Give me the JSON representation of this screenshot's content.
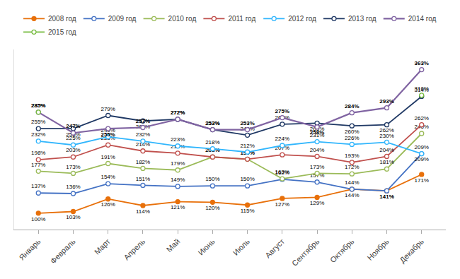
{
  "chart_data": {
    "type": "line",
    "categories": [
      "Январь",
      "Февраль",
      "Март",
      "Апрель",
      "Май",
      "Июнь",
      "Июль",
      "Август",
      "Сентябрь",
      "Октябрь",
      "Ноябрь",
      "Декабрь"
    ],
    "series": [
      {
        "name": "2008 год",
        "color": "#E8700A",
        "marker": "circle",
        "values": [
          100,
          103,
          126,
          114,
          121,
          120,
          115,
          127,
          129,
          144,
          141,
          171
        ],
        "value_labels": [
          "100%",
          "103%",
          "126%",
          "114%",
          "121%",
          "120%",
          "115%",
          "127%",
          "129%",
          "144%",
          "141%",
          "171%"
        ]
      },
      {
        "name": "2009 год",
        "color": "#4472C4",
        "marker": "circle-open",
        "values": [
          137,
          136,
          154,
          151,
          149,
          150,
          150,
          162,
          157,
          144,
          141,
          209
        ],
        "value_labels": [
          "137%",
          "136%",
          "154%",
          "151%",
          "149%",
          "150%",
          "150%",
          "162%",
          "157%",
          "144%",
          "141%",
          "209%"
        ]
      },
      {
        "name": "2010 год",
        "color": "#9BBB59",
        "marker": "circle-open",
        "values": [
          177,
          173,
          191,
          182,
          179,
          203,
          199,
          163,
          173,
          172,
          181,
          246
        ],
        "value_labels": [
          "177%",
          "173%",
          "191%",
          "182%",
          "179%",
          "203%",
          "199%",
          "163%",
          "173%",
          "172%",
          "181%",
          "246%"
        ]
      },
      {
        "name": "2011 год",
        "color": "#C0504D",
        "marker": "circle-open",
        "values": [
          198,
          203,
          225,
          214,
          210,
          203,
          199,
          207,
          204,
          193,
          204,
          262
        ],
        "value_labels": [
          "198%",
          "203%",
          "225%",
          "214%",
          "210%",
          "203%",
          "199%",
          "207%",
          "204%",
          "193%",
          "204%",
          "262%"
        ]
      },
      {
        "name": "2012 год",
        "color": "#31B6FD",
        "marker": "circle-open",
        "values": [
          232,
          225,
          240,
          232,
          223,
          218,
          212,
          224,
          231,
          226,
          230,
          209
        ],
        "value_labels": [
          "232%",
          "225%",
          "240%",
          "232%",
          "223%",
          "218%",
          "212%",
          "224%",
          "231%",
          "226%",
          "230%",
          "209%"
        ]
      },
      {
        "name": "2013 год",
        "color": "#1F3864",
        "marker": "circle-open",
        "values": [
          255,
          255,
          279,
          269,
          272,
          253,
          243,
          263,
          265,
          260,
          262,
          314
        ],
        "value_labels": [
          "255%",
          "255%",
          "279%",
          "269%",
          "272%",
          "253%",
          "243%",
          "263%",
          "265%",
          "260%",
          "262%",
          "314%"
        ]
      },
      {
        "name": "2014 год",
        "color": "#8064A2",
        "marker": "circle-open",
        "values": [
          285,
          247,
          255,
          257,
          272,
          253,
          253,
          275,
          258,
          284,
          293,
          363
        ],
        "value_labels": [
          "285%",
          "247%",
          "255%",
          "257%",
          "272%",
          "253%",
          "253%",
          "275%",
          "258%",
          "284%",
          "293%",
          "363%"
        ]
      },
      {
        "name": "2015 год",
        "color": "#77BC40",
        "marker": "circle-open",
        "values": [
          285,
          null,
          null,
          null,
          null,
          null,
          null,
          null,
          null,
          null,
          null,
          316
        ],
        "value_labels": [
          "285%",
          null,
          null,
          null,
          null,
          null,
          null,
          null,
          null,
          null,
          null,
          "316%"
        ]
      }
    ],
    "ylim": [
      70,
      400
    ],
    "tick_labels": "x",
    "grid": false,
    "legend": "top",
    "data_labels": true
  }
}
